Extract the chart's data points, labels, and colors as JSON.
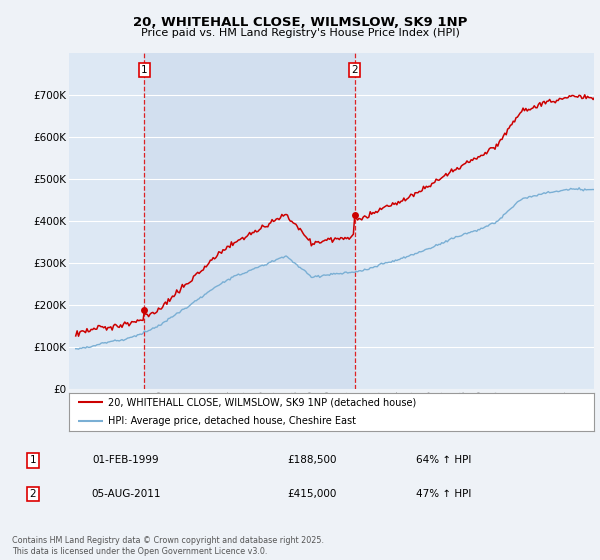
{
  "title1": "20, WHITEHALL CLOSE, WILMSLOW, SK9 1NP",
  "title2": "Price paid vs. HM Land Registry's House Price Index (HPI)",
  "background_color": "#eef2f7",
  "plot_bg_color": "#dde8f4",
  "highlight_bg_color": "#ccdaed",
  "grid_color": "#ffffff",
  "red_line_color": "#cc0000",
  "blue_line_color": "#7aafd4",
  "vline_color": "#dd0000",
  "purchase1_year": 1999.08,
  "purchase1_value": 188500,
  "purchase2_year": 2011.58,
  "purchase2_value": 415000,
  "legend_red": "20, WHITEHALL CLOSE, WILMSLOW, SK9 1NP (detached house)",
  "legend_blue": "HPI: Average price, detached house, Cheshire East",
  "table_rows": [
    {
      "num": "1",
      "date": "01-FEB-1999",
      "price": "£188,500",
      "hpi": "64% ↑ HPI"
    },
    {
      "num": "2",
      "date": "05-AUG-2011",
      "price": "£415,000",
      "hpi": "47% ↑ HPI"
    }
  ],
  "footnote": "Contains HM Land Registry data © Crown copyright and database right 2025.\nThis data is licensed under the Open Government Licence v3.0.",
  "ylim": [
    0,
    800000
  ],
  "yticks": [
    0,
    100000,
    200000,
    300000,
    400000,
    500000,
    600000,
    700000
  ],
  "xstart": 1994.6,
  "xend": 2025.8
}
